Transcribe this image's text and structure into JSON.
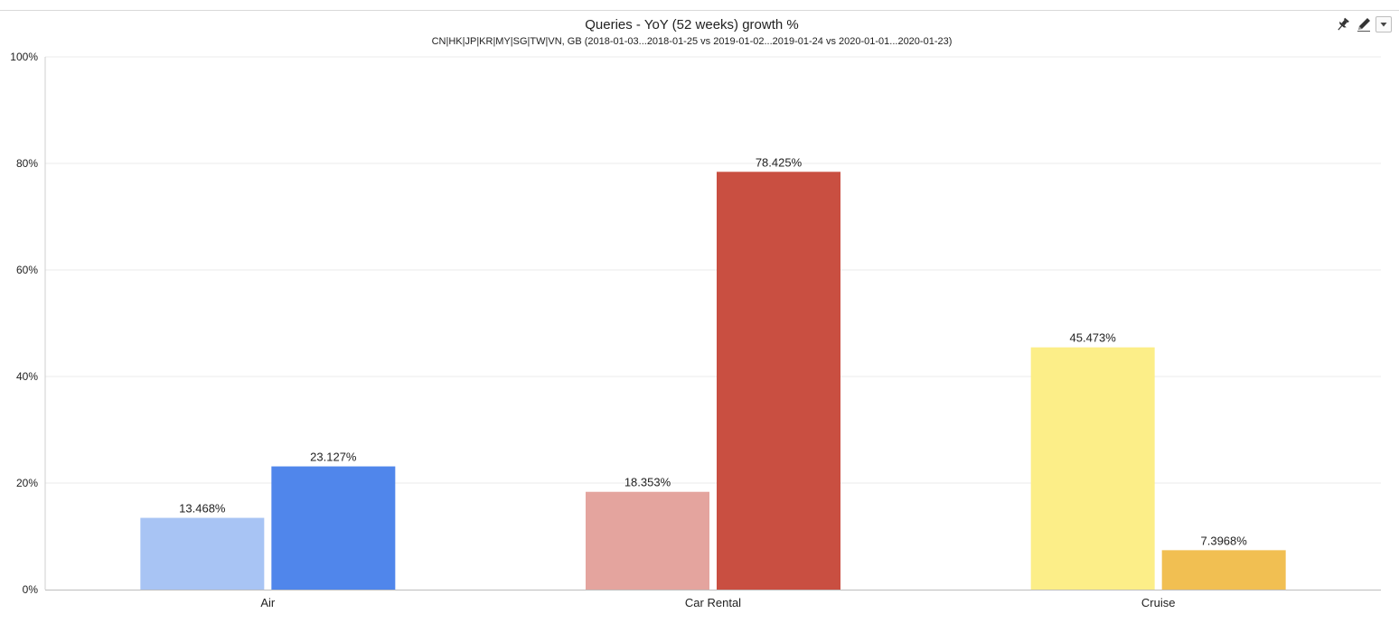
{
  "toolbar": {
    "pin": "pin-icon",
    "edit": "pencil-icon",
    "menu": "dropdown-arrow-icon"
  },
  "chart_data": {
    "type": "bar",
    "title": "Queries - YoY (52 weeks) growth %",
    "subtitle": "CN|HK|JP|KR|MY|SG|TW|VN, GB (2018-01-03...2018-01-25 vs 2019-01-02...2019-01-24 vs 2020-01-01...2020-01-23)",
    "xlabel": "",
    "ylabel": "",
    "ylim": [
      0,
      100
    ],
    "yticks": [
      0,
      20,
      40,
      60,
      80,
      100
    ],
    "ytick_labels": [
      "0%",
      "20%",
      "40%",
      "60%",
      "80%",
      "100%"
    ],
    "grid": true,
    "legend": "none",
    "categories": [
      "Air",
      "Car Rental",
      "Cruise"
    ],
    "series": [
      {
        "values": [
          13.468,
          18.353,
          45.473
        ],
        "labels": [
          "13.468%",
          "18.353%",
          "45.473%"
        ],
        "colors": [
          "#a8c4f4",
          "#e4a49e",
          "#fcee88"
        ]
      },
      {
        "values": [
          23.127,
          78.425,
          7.3968
        ],
        "labels": [
          "23.127%",
          "78.425%",
          "7.3968%"
        ],
        "colors": [
          "#5086eb",
          "#c94f41",
          "#f1bf52"
        ]
      }
    ]
  }
}
